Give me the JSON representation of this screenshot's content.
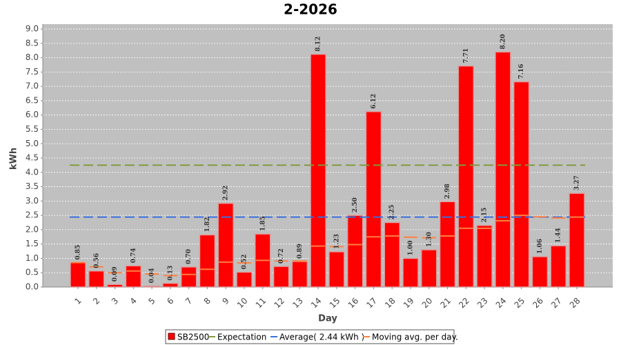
{
  "chart_data": {
    "type": "bar",
    "title": "2-2026",
    "x_label": "Day",
    "y_label": "kWh",
    "categories": [
      "1",
      "2",
      "3",
      "4",
      "5",
      "6",
      "7",
      "8",
      "9",
      "10",
      "11",
      "12",
      "13",
      "14",
      "15",
      "16",
      "17",
      "18",
      "19",
      "20",
      "21",
      "22",
      "23",
      "24",
      "25",
      "26",
      "27",
      "28"
    ],
    "series": [
      {
        "name": "SB2500",
        "color": "#ff0000",
        "values": [
          0.85,
          0.56,
          0.09,
          0.74,
          0.04,
          0.13,
          0.7,
          1.82,
          2.92,
          0.52,
          1.85,
          0.72,
          0.89,
          8.12,
          1.23,
          2.5,
          6.12,
          2.25,
          1.0,
          1.3,
          2.98,
          7.71,
          2.15,
          8.2,
          7.16,
          1.06,
          1.44,
          3.27
        ],
        "value_labels": [
          "0.85",
          "0.56",
          "0.09",
          "0.74",
          "0.04",
          "0.13",
          "0.70",
          "1.82",
          "2.92",
          "0.52",
          "1.85",
          "0.72",
          "0.89",
          "8.12",
          "1.23",
          "2.50",
          "6.12",
          "2.25",
          "1.00",
          "1.30",
          "2.98",
          "7.71",
          "2.15",
          "8.20",
          "7.16",
          "1.06",
          "1.44",
          "3.27"
        ]
      }
    ],
    "expectation": {
      "name": "Expectation",
      "color": "#7f9a3c",
      "value": 4.25
    },
    "average": {
      "name": "Average( 2.44 kWh )",
      "color": "#3b6fe0",
      "value": 2.44
    },
    "moving_average": {
      "name": "Moving avg. per day.",
      "color": "#ff7f3f",
      "values": [
        0.85,
        0.705,
        0.5,
        0.56,
        0.456,
        0.4,
        0.44,
        0.62,
        0.87,
        0.84,
        0.93,
        0.91,
        0.91,
        1.43,
        1.41,
        1.48,
        1.75,
        1.78,
        1.74,
        1.72,
        1.78,
        2.05,
        2.05,
        2.31,
        2.5,
        2.45,
        2.41,
        2.44
      ]
    },
    "ylim": [
      0,
      9.17
    ],
    "yticks": [
      {
        "value": 0,
        "label": "0.0"
      },
      {
        "value": 0.5,
        "label": "0.5"
      },
      {
        "value": 1,
        "label": "1.0"
      },
      {
        "value": 1.5,
        "label": "1.5"
      },
      {
        "value": 2,
        "label": "2.0"
      },
      {
        "value": 2.5,
        "label": "2.5"
      },
      {
        "value": 3,
        "label": "3.0"
      },
      {
        "value": 3.5,
        "label": "3.5"
      },
      {
        "value": 4,
        "label": "4.0"
      },
      {
        "value": 4.5,
        "label": "4.5"
      },
      {
        "value": 5,
        "label": "5.0"
      },
      {
        "value": 5.5,
        "label": "5.5"
      },
      {
        "value": 6,
        "label": "6.0"
      },
      {
        "value": 6.5,
        "label": "6.5"
      },
      {
        "value": 7,
        "label": "7.0"
      },
      {
        "value": 7.5,
        "label": "7.5"
      },
      {
        "value": 8,
        "label": "8.0"
      },
      {
        "value": 8.5,
        "label": "8.5"
      },
      {
        "value": 9,
        "label": "9.0"
      }
    ],
    "grid": true
  }
}
